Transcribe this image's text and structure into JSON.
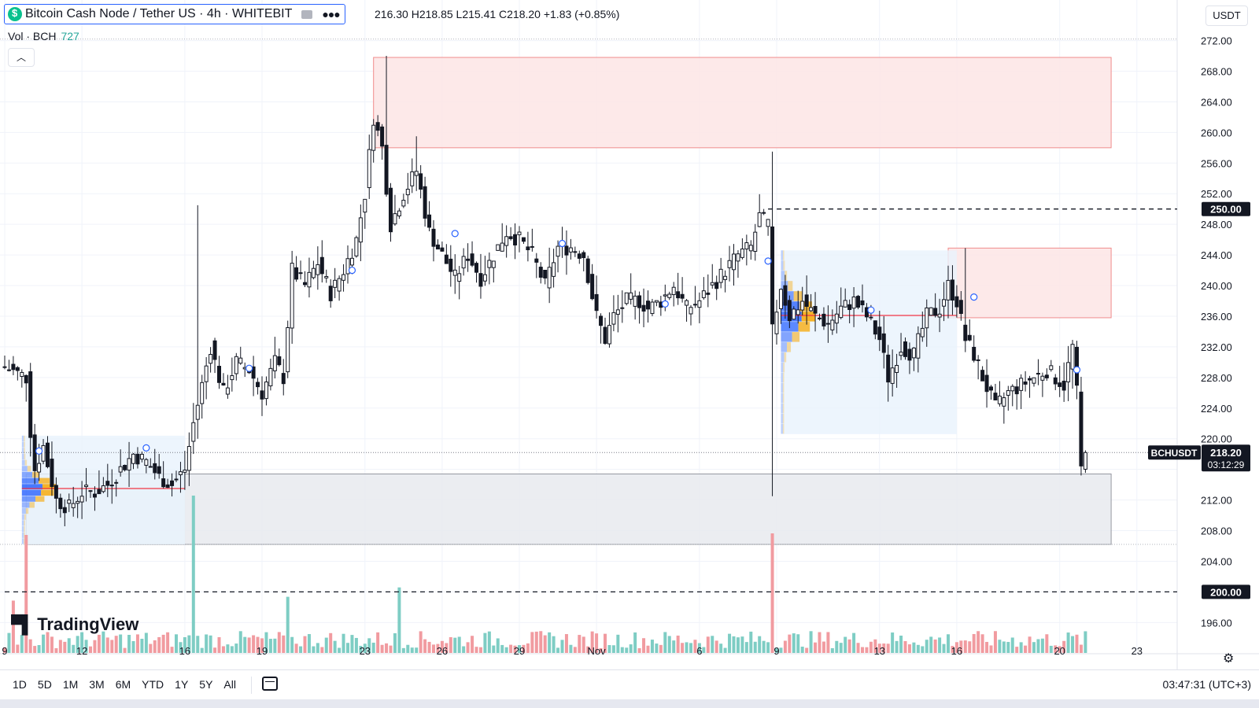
{
  "header": {
    "title": "Bitcoin Cash Node / Tether US · 4h · WHITEBIT",
    "ohlc": "216.30 H218.85 L215.41 C218.20 +1.83 (+0.85%)",
    "vol_label": "Vol · BCH",
    "vol_value": "727",
    "currency": "USDT",
    "logo_text": "TradingView"
  },
  "bottom_bar": {
    "ranges": [
      "1D",
      "5D",
      "1M",
      "3M",
      "6M",
      "YTD",
      "1Y",
      "5Y",
      "All"
    ],
    "clock": "03:47:31 (UTC+3)"
  },
  "colors": {
    "up": "#131722",
    "down": "#131722",
    "vol_up": "#7ecdc4",
    "vol_down": "#f19ba0",
    "zone_red_fill": "#fde5e5",
    "zone_red_stroke": "#f08c8c",
    "zone_grey_fill": "#e8eaee",
    "profile_blue": "#2962ff",
    "profile_orange": "#f7a600",
    "profile_area": "#e8f3fc"
  },
  "chart_data": {
    "type": "candlestick",
    "symbol": "BCHUSDT",
    "timeframe": "4h",
    "y_axis": {
      "ticks": [
        196,
        200,
        204,
        208,
        212,
        216,
        220,
        224,
        228,
        232,
        236,
        240,
        244,
        248,
        252,
        256,
        260,
        264,
        268,
        272
      ],
      "tick_labels": [
        "196.00",
        "",
        "204.00",
        "208.00",
        "212.00",
        "",
        "220.00",
        "224.00",
        "228.00",
        "232.00",
        "236.00",
        "240.00",
        "244.00",
        "248.00",
        "252.00",
        "256.00",
        "260.00",
        "264.00",
        "268.00",
        "272.00"
      ],
      "range": [
        194.8,
        273.6
      ]
    },
    "x_axis": {
      "labels": [
        "9",
        "12",
        "16",
        "19",
        "23",
        "26",
        "29",
        "Nov",
        "6",
        "9",
        "13",
        "16",
        "20",
        "23"
      ],
      "candle_index": [
        0,
        18,
        42,
        60,
        84,
        102,
        120,
        138,
        162,
        180,
        204,
        222,
        246,
        264
      ]
    },
    "last_price": {
      "label": "BCHUSDT",
      "value": "218.20",
      "countdown": "03:12:29",
      "price": 218.2
    },
    "horizontal_levels": [
      {
        "price": 250,
        "label": "250.00",
        "start_candle": 178
      },
      {
        "price": 200,
        "label": "200.00",
        "start_candle": 0
      }
    ],
    "zones": [
      {
        "kind": "supply",
        "from_candle": 86,
        "to_candle": 258,
        "low": 258,
        "high": 269.8
      },
      {
        "kind": "supply",
        "from_candle": 220,
        "to_candle": 258,
        "low": 235.8,
        "high": 244.9
      },
      {
        "kind": "demand",
        "from_candle": 5,
        "to_candle": 258,
        "low": 206.2,
        "high": 215.4
      }
    ],
    "volume_profiles": [
      {
        "from_candle": 4,
        "to_candle": 42,
        "low": 206.2,
        "high": 220.4,
        "poc": 213.5
      },
      {
        "from_candle": 181,
        "to_candle": 222,
        "low": 220.6,
        "high": 244.6,
        "poc": 236.1
      }
    ],
    "series_anchors": [
      [
        0,
        229.4
      ],
      [
        5,
        228
      ],
      [
        6,
        221
      ],
      [
        7,
        216
      ],
      [
        9,
        219
      ],
      [
        12,
        212
      ],
      [
        15,
        211
      ],
      [
        18,
        213
      ],
      [
        21,
        213
      ],
      [
        24,
        214
      ],
      [
        27,
        216
      ],
      [
        30,
        218
      ],
      [
        33,
        217
      ],
      [
        36,
        215
      ],
      [
        39,
        214
      ],
      [
        42,
        216
      ],
      [
        44,
        222
      ],
      [
        46,
        227
      ],
      [
        48,
        232
      ],
      [
        51,
        226
      ],
      [
        54,
        230
      ],
      [
        57,
        229
      ],
      [
        60,
        226
      ],
      [
        63,
        230
      ],
      [
        65,
        228
      ],
      [
        67,
        242
      ],
      [
        70,
        240
      ],
      [
        73,
        243
      ],
      [
        76,
        239
      ],
      [
        79,
        242
      ],
      [
        82,
        246
      ],
      [
        84,
        252
      ],
      [
        86,
        262
      ],
      [
        88,
        258
      ],
      [
        90,
        248
      ],
      [
        93,
        252
      ],
      [
        96,
        255
      ],
      [
        99,
        247
      ],
      [
        102,
        244
      ],
      [
        105,
        241
      ],
      [
        108,
        244
      ],
      [
        111,
        241
      ],
      [
        114,
        244
      ],
      [
        117,
        247
      ],
      [
        120,
        246
      ],
      [
        123,
        244
      ],
      [
        126,
        240
      ],
      [
        129,
        245
      ],
      [
        132,
        245
      ],
      [
        135,
        244
      ],
      [
        138,
        236
      ],
      [
        140,
        233
      ],
      [
        142,
        236
      ],
      [
        145,
        238
      ],
      [
        148,
        238
      ],
      [
        150,
        237
      ],
      [
        153,
        238
      ],
      [
        156,
        240
      ],
      [
        159,
        237
      ],
      [
        162,
        238
      ],
      [
        165,
        240
      ],
      [
        168,
        242
      ],
      [
        171,
        244
      ],
      [
        174,
        245
      ],
      [
        176,
        249
      ],
      [
        178,
        248
      ],
      [
        179,
        234
      ],
      [
        181,
        240
      ],
      [
        183,
        236
      ],
      [
        186,
        238
      ],
      [
        189,
        236
      ],
      [
        192,
        235
      ],
      [
        195,
        237
      ],
      [
        198,
        238
      ],
      [
        201,
        236
      ],
      [
        204,
        233
      ],
      [
        206,
        228
      ],
      [
        209,
        232
      ],
      [
        212,
        231
      ],
      [
        215,
        236
      ],
      [
        218,
        237
      ],
      [
        220,
        240
      ],
      [
        222,
        238
      ],
      [
        224,
        233
      ],
      [
        226,
        231
      ],
      [
        228,
        228
      ],
      [
        231,
        224
      ],
      [
        234,
        226
      ],
      [
        237,
        227
      ],
      [
        240,
        228
      ],
      [
        243,
        229
      ],
      [
        245,
        228
      ],
      [
        247,
        227
      ],
      [
        249,
        232
      ],
      [
        250,
        226
      ],
      [
        251,
        216
      ],
      [
        252,
        218.2
      ]
    ]
  }
}
